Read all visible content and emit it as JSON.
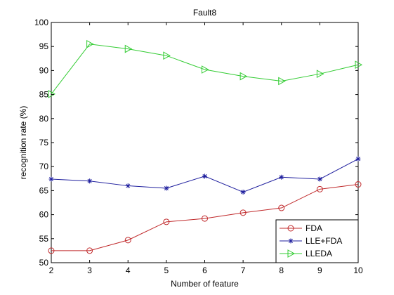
{
  "chart_data": {
    "type": "line",
    "title": "Fault8",
    "xlabel": "Number of feature",
    "ylabel": "recognition rate (%)",
    "x": [
      2,
      3,
      4,
      5,
      6,
      7,
      8,
      9,
      10
    ],
    "xlim": [
      2,
      10
    ],
    "ylim": [
      50,
      100
    ],
    "xticks": [
      2,
      3,
      4,
      5,
      6,
      7,
      8,
      9,
      10
    ],
    "yticks": [
      50,
      55,
      60,
      65,
      70,
      75,
      80,
      85,
      90,
      95,
      100
    ],
    "grid": false,
    "legend_position": "bottom-right",
    "series": [
      {
        "name": "FDA",
        "color": "#c0282a",
        "marker": "circle",
        "values": [
          52.5,
          52.5,
          54.7,
          58.5,
          59.2,
          60.4,
          61.4,
          65.3,
          66.3
        ]
      },
      {
        "name": "LLE+FDA",
        "color": "#1f1f9e",
        "marker": "star",
        "values": [
          67.4,
          67.0,
          66.0,
          65.5,
          68.0,
          64.7,
          67.8,
          67.4,
          71.6
        ]
      },
      {
        "name": "LLEDA",
        "color": "#33cc33",
        "marker": "triangle-right",
        "values": [
          85.1,
          95.5,
          94.5,
          93.1,
          90.2,
          88.8,
          87.8,
          89.3,
          91.2
        ]
      }
    ]
  }
}
